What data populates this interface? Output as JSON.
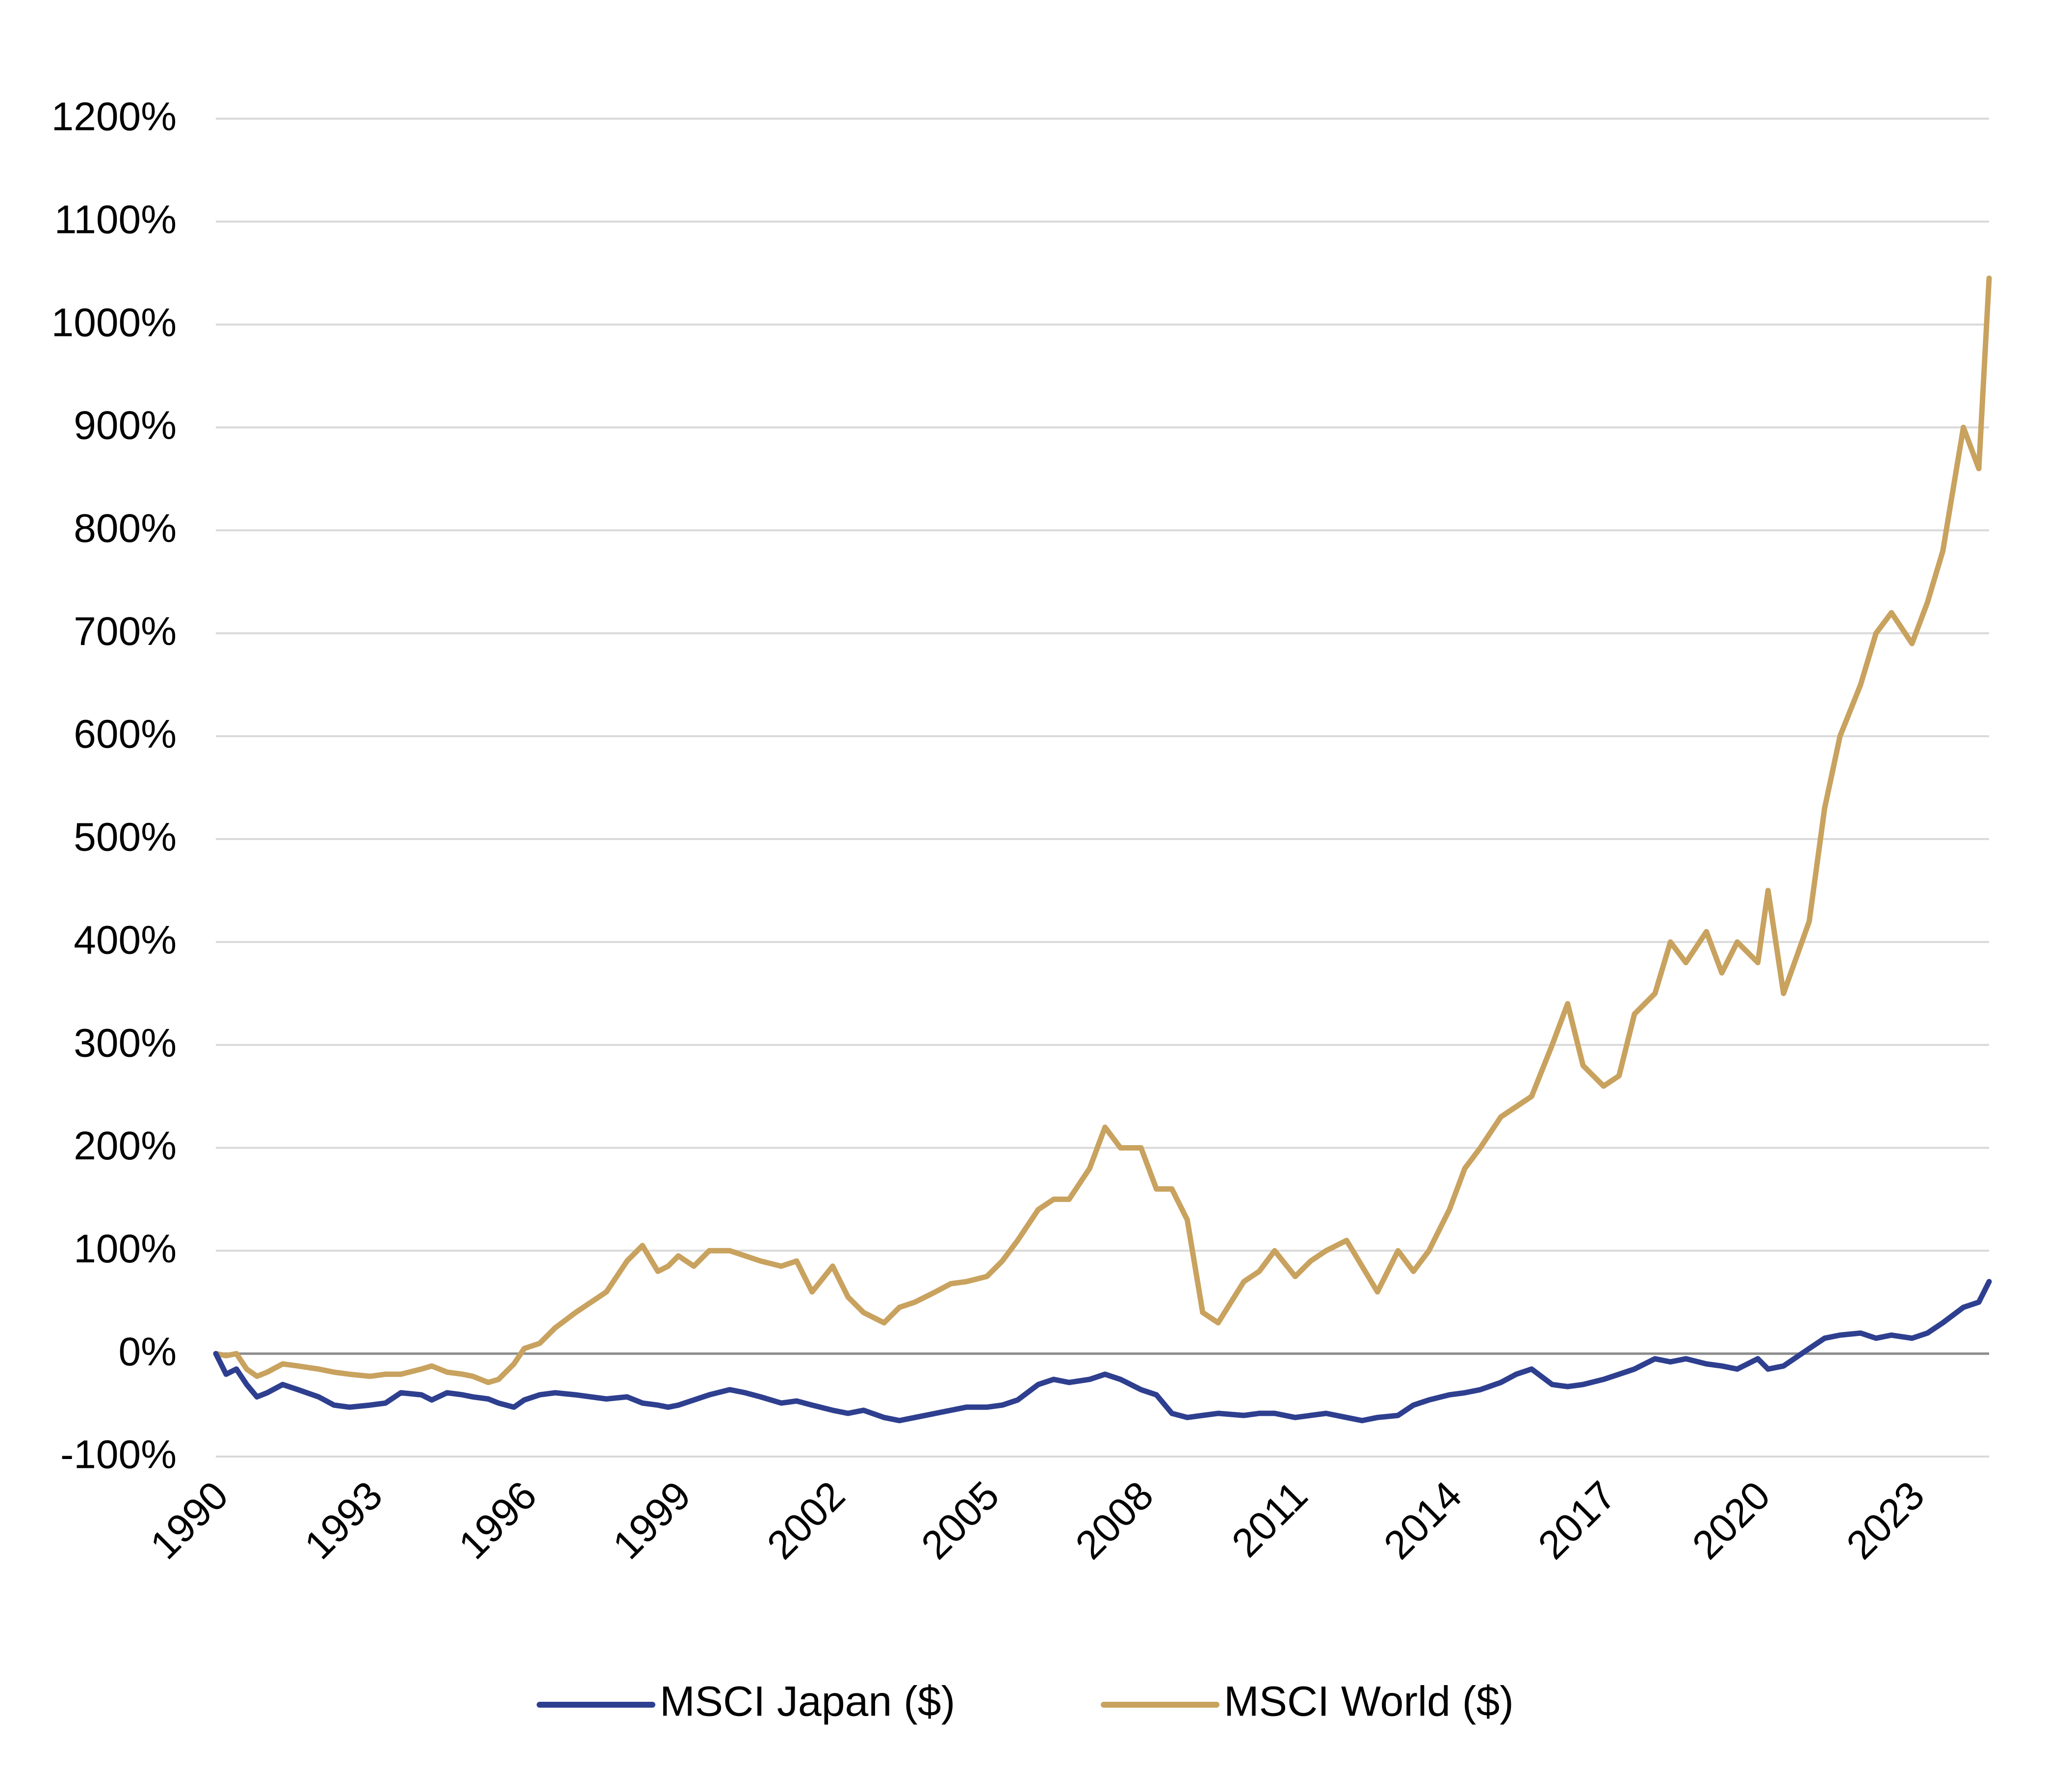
{
  "chart_data": {
    "type": "line",
    "title": "",
    "xlabel": "",
    "ylabel": "",
    "ylim": [
      -100,
      1200
    ],
    "y_ticks": [
      -100,
      0,
      100,
      200,
      300,
      400,
      500,
      600,
      700,
      800,
      900,
      1000,
      1100,
      1200
    ],
    "y_tick_labels": [
      "-100%",
      "0%",
      "100%",
      "200%",
      "300%",
      "400%",
      "500%",
      "600%",
      "700%",
      "800%",
      "900%",
      "1000%",
      "1100%",
      "1200%"
    ],
    "xlim": [
      1990,
      2024.5
    ],
    "x_tick_labels": [
      "1990",
      "1993",
      "1996",
      "1999",
      "2002",
      "2005",
      "2008",
      "2011",
      "2014",
      "2017",
      "2020",
      "2023"
    ],
    "grid": true,
    "legend_position": "bottom",
    "series": [
      {
        "name": "MSCI Japan ($)",
        "color": "#2e3f8f",
        "x": [
          1990.0,
          1990.2,
          1990.4,
          1990.6,
          1990.8,
          1991.0,
          1991.3,
          1991.6,
          1992.0,
          1992.3,
          1992.6,
          1993.0,
          1993.3,
          1993.6,
          1994.0,
          1994.2,
          1994.5,
          1994.8,
          1995.0,
          1995.3,
          1995.5,
          1995.8,
          1996.0,
          1996.3,
          1996.6,
          1997.0,
          1997.3,
          1997.6,
          1998.0,
          1998.3,
          1998.6,
          1998.8,
          1999.0,
          1999.3,
          1999.6,
          2000.0,
          2000.3,
          2000.6,
          2001.0,
          2001.3,
          2001.6,
          2002.0,
          2002.3,
          2002.6,
          2003.0,
          2003.3,
          2003.6,
          2004.0,
          2004.3,
          2004.6,
          2005.0,
          2005.3,
          2005.6,
          2006.0,
          2006.3,
          2006.6,
          2007.0,
          2007.3,
          2007.6,
          2008.0,
          2008.3,
          2008.6,
          2008.9,
          2009.2,
          2009.5,
          2010.0,
          2010.3,
          2010.6,
          2011.0,
          2011.3,
          2011.6,
          2012.0,
          2012.3,
          2012.6,
          2013.0,
          2013.3,
          2013.6,
          2014.0,
          2014.3,
          2014.6,
          2015.0,
          2015.3,
          2015.6,
          2016.0,
          2016.3,
          2016.6,
          2017.0,
          2017.3,
          2017.6,
          2018.0,
          2018.3,
          2018.6,
          2019.0,
          2019.3,
          2019.6,
          2020.0,
          2020.2,
          2020.5,
          2021.0,
          2021.3,
          2021.6,
          2022.0,
          2022.3,
          2022.6,
          2023.0,
          2023.3,
          2023.6,
          2024.0,
          2024.3,
          2024.5
        ],
        "values": [
          0,
          -20,
          -15,
          -30,
          -42,
          -38,
          -30,
          -35,
          -42,
          -50,
          -52,
          -50,
          -48,
          -38,
          -40,
          -45,
          -38,
          -40,
          -42,
          -44,
          -48,
          -52,
          -45,
          -40,
          -38,
          -40,
          -42,
          -44,
          -42,
          -48,
          -50,
          -52,
          -50,
          -45,
          -40,
          -35,
          -38,
          -42,
          -48,
          -46,
          -50,
          -55,
          -58,
          -55,
          -62,
          -65,
          -62,
          -58,
          -55,
          -52,
          -52,
          -50,
          -45,
          -30,
          -25,
          -28,
          -25,
          -20,
          -25,
          -35,
          -40,
          -58,
          -62,
          -60,
          -58,
          -60,
          -58,
          -58,
          -62,
          -60,
          -58,
          -62,
          -65,
          -62,
          -60,
          -50,
          -45,
          -40,
          -38,
          -35,
          -28,
          -20,
          -15,
          -30,
          -32,
          -30,
          -25,
          -20,
          -15,
          -5,
          -8,
          -5,
          -10,
          -12,
          -15,
          -5,
          -15,
          -12,
          5,
          15,
          18,
          20,
          15,
          18,
          15,
          20,
          30,
          45,
          50,
          70
        ]
      },
      {
        "name": "MSCI World ($)",
        "color": "#c8a25e",
        "x": [
          1990.0,
          1990.2,
          1990.4,
          1990.6,
          1990.8,
          1991.0,
          1991.3,
          1991.6,
          1992.0,
          1992.3,
          1992.6,
          1993.0,
          1993.3,
          1993.6,
          1994.0,
          1994.2,
          1994.5,
          1994.8,
          1995.0,
          1995.3,
          1995.5,
          1995.8,
          1996.0,
          1996.3,
          1996.6,
          1997.0,
          1997.3,
          1997.6,
          1998.0,
          1998.3,
          1998.6,
          1998.8,
          1999.0,
          1999.3,
          1999.6,
          2000.0,
          2000.3,
          2000.6,
          2001.0,
          2001.3,
          2001.6,
          2002.0,
          2002.3,
          2002.6,
          2003.0,
          2003.3,
          2003.6,
          2004.0,
          2004.3,
          2004.6,
          2005.0,
          2005.3,
          2005.6,
          2006.0,
          2006.3,
          2006.6,
          2007.0,
          2007.3,
          2007.6,
          2008.0,
          2008.3,
          2008.6,
          2008.9,
          2009.2,
          2009.5,
          2010.0,
          2010.3,
          2010.6,
          2011.0,
          2011.3,
          2011.6,
          2012.0,
          2012.3,
          2012.6,
          2013.0,
          2013.3,
          2013.6,
          2014.0,
          2014.3,
          2014.6,
          2015.0,
          2015.3,
          2015.6,
          2016.0,
          2016.3,
          2016.6,
          2017.0,
          2017.3,
          2017.6,
          2018.0,
          2018.3,
          2018.6,
          2019.0,
          2019.3,
          2019.6,
          2020.0,
          2020.2,
          2020.5,
          2021.0,
          2021.3,
          2021.6,
          2022.0,
          2022.3,
          2022.6,
          2023.0,
          2023.3,
          2023.6,
          2024.0,
          2024.3,
          2024.5
        ],
        "values": [
          0,
          -2,
          0,
          -15,
          -22,
          -18,
          -10,
          -12,
          -15,
          -18,
          -20,
          -22,
          -20,
          -20,
          -15,
          -12,
          -18,
          -20,
          -22,
          -28,
          -25,
          -10,
          5,
          10,
          25,
          40,
          50,
          60,
          90,
          105,
          80,
          85,
          95,
          85,
          100,
          100,
          95,
          90,
          85,
          90,
          60,
          85,
          55,
          40,
          30,
          45,
          50,
          60,
          68,
          70,
          75,
          90,
          110,
          140,
          150,
          150,
          180,
          220,
          200,
          200,
          160,
          160,
          130,
          40,
          30,
          70,
          80,
          100,
          75,
          90,
          100,
          110,
          85,
          60,
          100,
          80,
          100,
          140,
          180,
          200,
          230,
          240,
          250,
          300,
          340,
          280,
          260,
          270,
          330,
          350,
          400,
          380,
          410,
          370,
          400,
          380,
          450,
          350,
          420,
          530,
          600,
          650,
          700,
          720,
          690,
          730,
          780,
          900,
          860,
          1045
        ]
      }
    ]
  }
}
